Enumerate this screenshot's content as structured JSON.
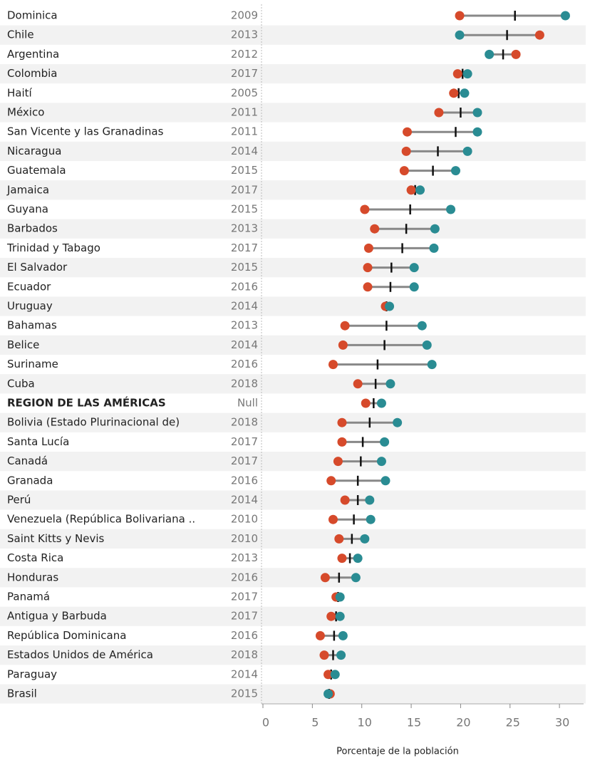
{
  "chart_data": {
    "type": "dumbbell",
    "axis_label": "Porcentaje de la población",
    "categories": [
      "Dominica",
      "Chile",
      "Argentina",
      "Colombia",
      "Haití",
      "México",
      "San Vicente y las Granadinas",
      "Nicaragua",
      "Guatemala",
      "Jamaica",
      "Guyana",
      "Barbados",
      "Trinidad y Tabago",
      "El Salvador",
      "Ecuador",
      "Uruguay",
      "Bahamas",
      "Belice",
      "Suriname",
      "Cuba",
      "REGION DE LAS AMÉRICAS",
      "Bolivia (Estado Plurinacional de)",
      "Santa Lucía",
      "Canadá",
      "Granada",
      "Perú",
      "Venezuela (República Bolivariana ..",
      "Saint Kitts y Nevis",
      "Costa Rica",
      "Honduras",
      "Panamá",
      "Antigua y Barbuda",
      "República Dominicana",
      "Estados Unidos de América",
      "Paraguay",
      "Brasil"
    ],
    "years": [
      "2009",
      "2013",
      "2012",
      "2017",
      "2005",
      "2011",
      "2011",
      "2014",
      "2015",
      "2017",
      "2015",
      "2013",
      "2017",
      "2015",
      "2016",
      "2014",
      "2013",
      "2014",
      "2016",
      "2018",
      "Null",
      "2018",
      "2017",
      "2017",
      "2016",
      "2014",
      "2010",
      "2010",
      "2013",
      "2016",
      "2017",
      "2017",
      "2016",
      "2018",
      "2014",
      "2015"
    ],
    "highlight": 20,
    "series": [
      {
        "color": "#d64a2b",
        "values": [
          19.9,
          28.0,
          25.6,
          19.7,
          19.3,
          17.8,
          14.6,
          14.5,
          14.3,
          15.0,
          10.3,
          11.3,
          10.7,
          10.6,
          10.6,
          12.4,
          8.3,
          8.1,
          7.1,
          9.6,
          10.4,
          8.0,
          8.0,
          7.6,
          6.9,
          8.3,
          7.1,
          7.7,
          8.0,
          6.3,
          7.4,
          6.9,
          5.8,
          6.2,
          6.6,
          6.8
        ]
      },
      {
        "color": "#2a8c93",
        "values": [
          30.6,
          19.9,
          22.9,
          20.7,
          20.4,
          21.7,
          21.7,
          20.7,
          19.5,
          15.9,
          19.0,
          17.4,
          17.3,
          15.3,
          15.3,
          12.8,
          16.1,
          16.6,
          17.1,
          12.9,
          12.0,
          13.6,
          12.3,
          12.0,
          12.4,
          10.8,
          10.9,
          10.3,
          9.6,
          9.4,
          7.8,
          7.8,
          8.1,
          7.9,
          7.3,
          6.6
        ]
      }
    ],
    "mid": {
      "color": "#111111",
      "values": [
        25.5,
        24.7,
        24.3,
        20.2,
        19.8,
        20.0,
        19.5,
        17.7,
        17.2,
        15.4,
        14.9,
        14.5,
        14.1,
        13.0,
        12.9,
        12.5,
        12.5,
        12.3,
        11.6,
        11.4,
        11.2,
        10.8,
        10.1,
        9.9,
        9.6,
        9.6,
        9.2,
        9.0,
        8.8,
        7.7,
        7.6,
        7.4,
        7.2,
        7.1,
        6.9,
        6.7
      ]
    },
    "line_color": "#888888",
    "xlim": [
      0,
      31
    ],
    "xticks": [
      0,
      5,
      10,
      15,
      20,
      25,
      30
    ]
  }
}
